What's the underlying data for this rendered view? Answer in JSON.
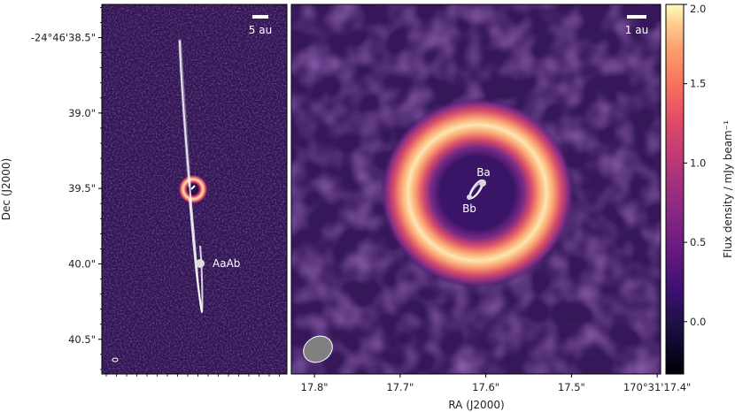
{
  "chart_data": [
    {
      "type": "heatmap",
      "panel": "left",
      "ylabel": "Dec (J2000)",
      "y_ticks": [
        "-24°46'38.5\"",
        "39.0\"",
        "39.5\"",
        "40.0\"",
        "40.5\""
      ],
      "y_tick_values": [
        38.5,
        39.0,
        39.5,
        40.0,
        40.5
      ],
      "ylim": [
        38.28,
        40.73
      ],
      "scale_bar": "5 au",
      "annotations": [
        {
          "text": "AaAb",
          "dec": 39.97
        }
      ],
      "ring_center_dec": 39.47,
      "colormap": "magma"
    },
    {
      "type": "heatmap",
      "panel": "right",
      "xlabel": "RA (J2000)",
      "x_ticks": [
        "17.8\"",
        "17.7\"",
        "17.6\"",
        "17.5\"",
        "170°31'17.4\""
      ],
      "x_tick_values": [
        17.8,
        17.7,
        17.6,
        17.5,
        17.4
      ],
      "xlim": [
        17.827,
        17.396
      ],
      "scale_bar": "1 au",
      "annotations": [
        {
          "text": "Ba"
        },
        {
          "text": "Bb"
        }
      ],
      "colorbar": {
        "label": "Flux density / mJy beam⁻¹",
        "ticks": [
          "2.0",
          "1.5",
          "1.0",
          "0.5",
          "0.0"
        ],
        "tick_values": [
          2.0,
          1.5,
          1.0,
          0.5,
          0.0
        ],
        "range": [
          -0.33,
          2.0
        ],
        "colormap": "magma"
      }
    }
  ],
  "colors": {
    "background_field": "#3a1a5c",
    "ring_peak": "#fde6b0",
    "ring_outer": "#e8506a",
    "orbit": "#ffffff"
  }
}
